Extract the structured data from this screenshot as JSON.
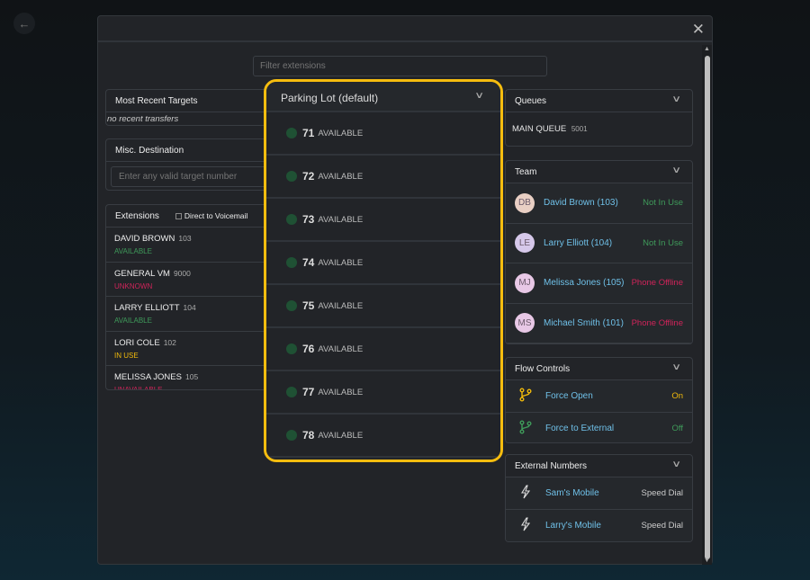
{
  "filter": {
    "placeholder": "Filter extensions"
  },
  "recent": {
    "title": "Most Recent Targets",
    "empty": "no recent transfers"
  },
  "misc": {
    "title": "Misc. Destination",
    "placeholder": "Enter any valid target number"
  },
  "extensions": {
    "title": "Extensions",
    "voicemail_label": "Direct to Voicemail",
    "items": [
      {
        "name": "DAVID BROWN",
        "num": "103",
        "status": "AVAILABLE",
        "color": "#3f9a5a"
      },
      {
        "name": "GENERAL VM",
        "num": "9000",
        "status": "UNKNOWN",
        "color": "#d0245a"
      },
      {
        "name": "LARRY ELLIOTT",
        "num": "104",
        "status": "AVAILABLE",
        "color": "#3f9a5a"
      },
      {
        "name": "LORI COLE",
        "num": "102",
        "status": "IN USE",
        "color": "#f0b90b"
      },
      {
        "name": "MELISSA JONES",
        "num": "105",
        "status": "UNAVAILABLE",
        "color": "#d0245a"
      }
    ]
  },
  "parking": {
    "title": "Parking Lot (default)",
    "slots": [
      {
        "num": "71",
        "status": "AVAILABLE"
      },
      {
        "num": "72",
        "status": "AVAILABLE"
      },
      {
        "num": "73",
        "status": "AVAILABLE"
      },
      {
        "num": "74",
        "status": "AVAILABLE"
      },
      {
        "num": "75",
        "status": "AVAILABLE"
      },
      {
        "num": "76",
        "status": "AVAILABLE"
      },
      {
        "num": "77",
        "status": "AVAILABLE"
      },
      {
        "num": "78",
        "status": "AVAILABLE"
      }
    ]
  },
  "queues": {
    "title": "Queues",
    "items": [
      {
        "name": "MAIN QUEUE",
        "num": "5001"
      }
    ]
  },
  "team": {
    "title": "Team",
    "members": [
      {
        "initials": "DB",
        "name": "David Brown (103)",
        "status": "Not In Use",
        "color": "#3f9a5a",
        "avatar": "#e9cfc4"
      },
      {
        "initials": "LE",
        "name": "Larry Elliott (104)",
        "status": "Not In Use",
        "color": "#3f9a5a",
        "avatar": "#d6c8ea"
      },
      {
        "initials": "MJ",
        "name": "Melissa Jones (105)",
        "status": "Phone Offline",
        "color": "#d0245a",
        "avatar": "#e8c8e6"
      },
      {
        "initials": "MS",
        "name": "Michael Smith (101)",
        "status": "Phone Offline",
        "color": "#d0245a",
        "avatar": "#e8c8e6"
      }
    ]
  },
  "flow": {
    "title": "Flow Controls",
    "items": [
      {
        "name": "Force Open",
        "state": "On",
        "color": "#f0b90b",
        "icon": "branch-icon"
      },
      {
        "name": "Force to External",
        "state": "Off",
        "color": "#3f9a5a",
        "icon": "branch-icon"
      }
    ]
  },
  "external": {
    "title": "External Numbers",
    "items": [
      {
        "name": "Sam's Mobile",
        "type": "Speed Dial",
        "icon": "lightning-icon"
      },
      {
        "name": "Larry's Mobile",
        "type": "Speed Dial",
        "icon": "lightning-icon"
      }
    ]
  }
}
